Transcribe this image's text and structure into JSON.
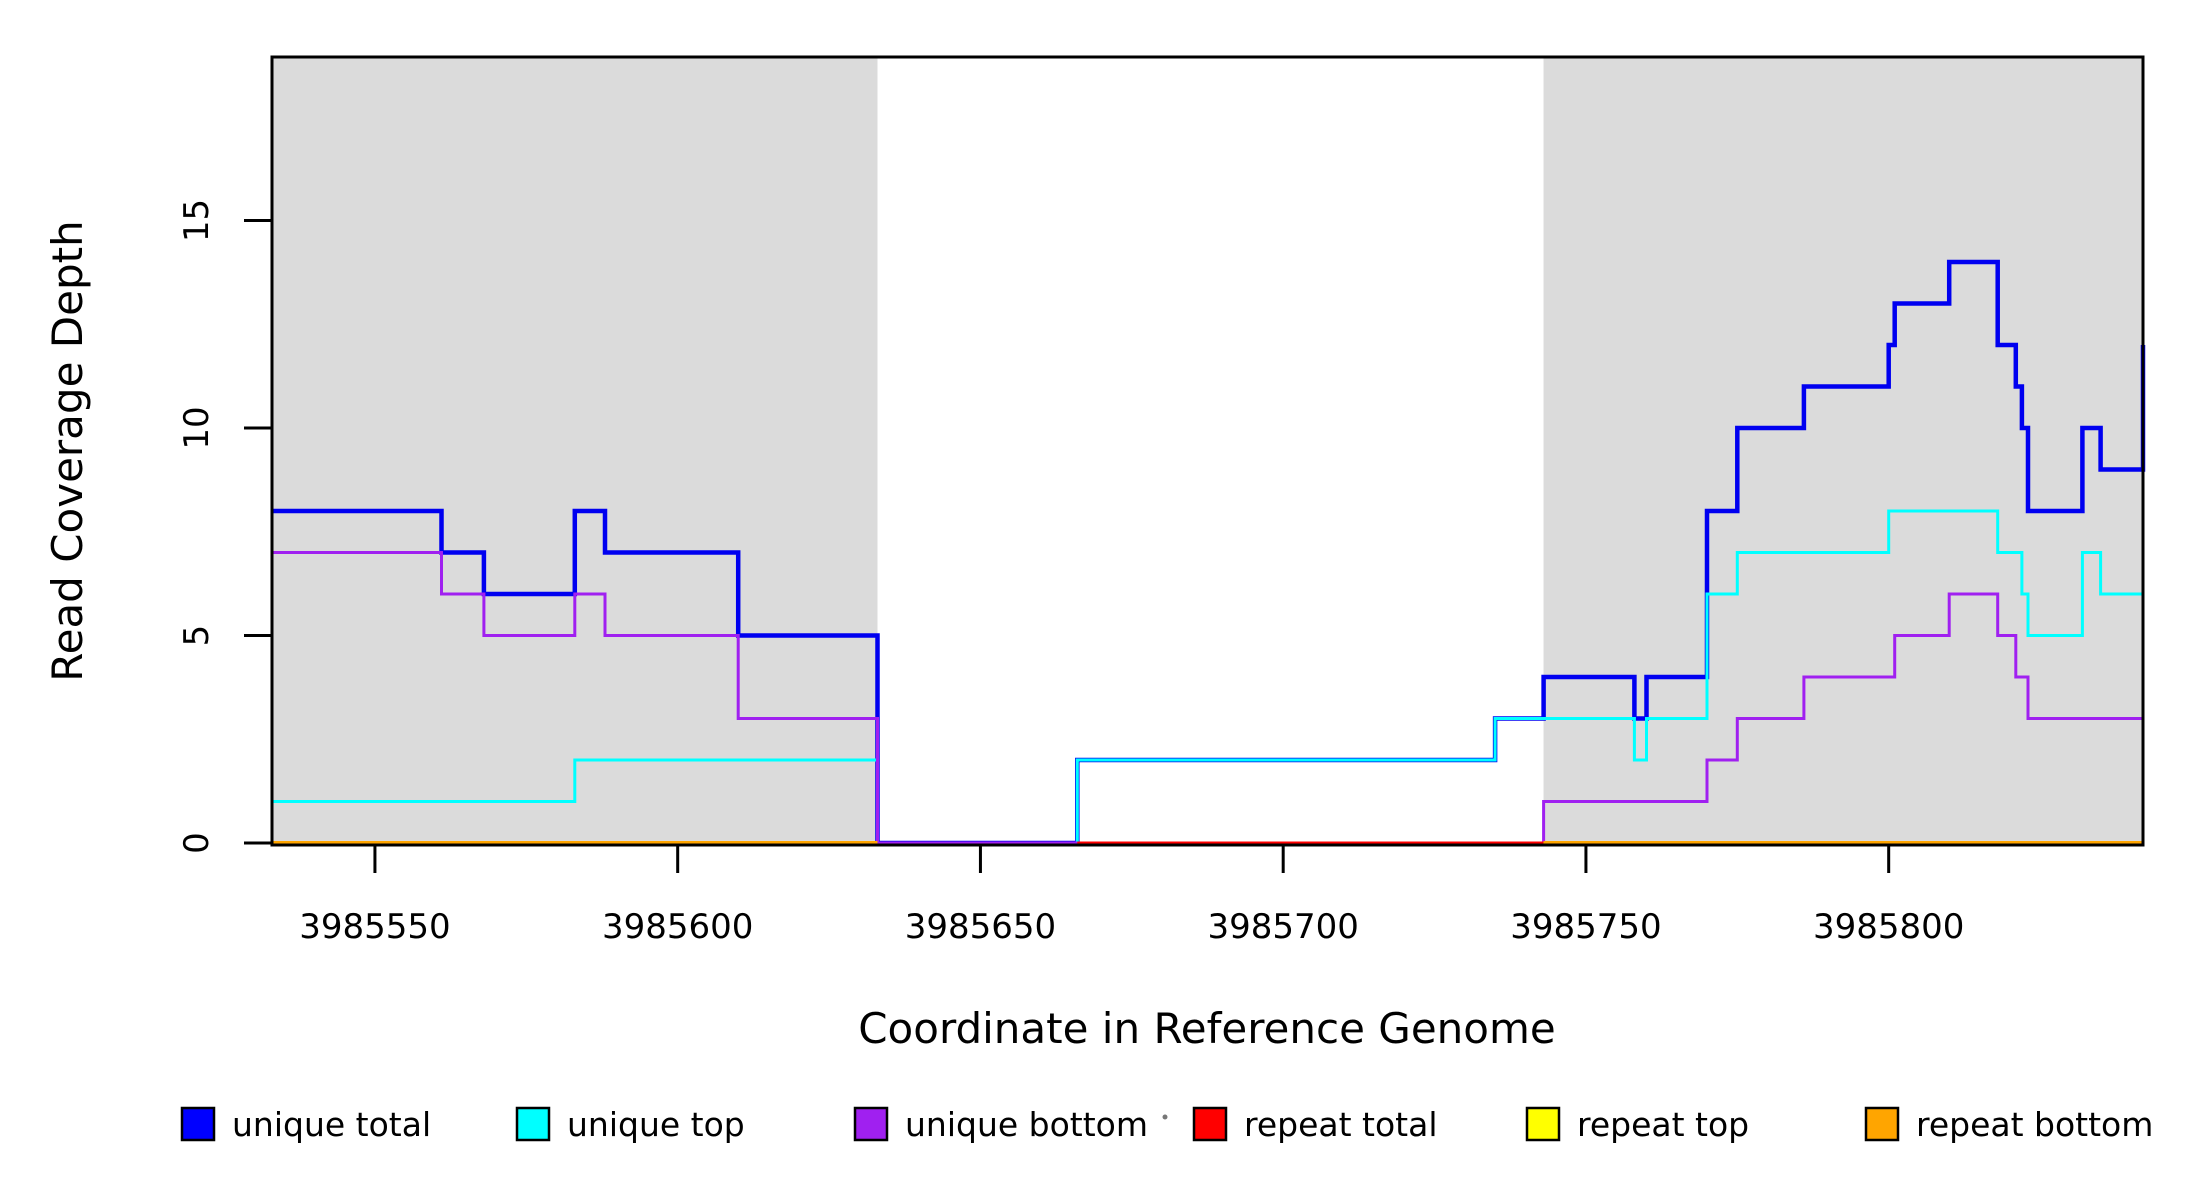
{
  "chart_data": {
    "type": "line",
    "step_style": "step-post",
    "title": "",
    "xlabel": "Coordinate in Reference Genome",
    "ylabel": "Read Coverage Depth",
    "xlim": [
      3985533,
      3985842
    ],
    "ylim": [
      0,
      18.94
    ],
    "x_ticks": [
      3985550,
      3985600,
      3985650,
      3985700,
      3985750,
      3985800
    ],
    "y_ticks": [
      0,
      5,
      10,
      15
    ],
    "grid": false,
    "legend_position": "bottom",
    "shaded_regions": [
      {
        "x0": 3985533,
        "x1": 3985633,
        "color": "#dbdbdb"
      },
      {
        "x0": 3985743,
        "x1": 3985842,
        "color": "#dbdbdb"
      }
    ],
    "series": [
      {
        "name": "unique total",
        "color": "#0000f0",
        "width": 4.5,
        "segments": [
          [
            [
              3985533,
              8
            ],
            [
              3985561,
              7
            ],
            [
              3985568,
              6
            ],
            [
              3985583,
              8
            ],
            [
              3985588,
              7
            ],
            [
              3985610,
              5
            ],
            [
              3985633,
              0
            ],
            [
              3985666,
              2
            ],
            [
              3985735,
              3
            ],
            [
              3985743,
              4
            ],
            [
              3985758,
              3
            ],
            [
              3985760,
              4
            ],
            [
              3985770,
              8
            ],
            [
              3985775,
              10
            ],
            [
              3985786,
              11
            ],
            [
              3985800,
              12
            ],
            [
              3985801,
              13
            ],
            [
              3985810,
              14
            ],
            [
              3985818,
              12
            ],
            [
              3985821,
              11
            ],
            [
              3985822,
              10
            ],
            [
              3985823,
              8
            ],
            [
              3985832,
              10
            ],
            [
              3985835,
              9
            ],
            [
              3985842,
              12
            ]
          ]
        ]
      },
      {
        "name": "unique top",
        "color": "#00ffff",
        "width": 3,
        "segments": [
          [
            [
              3985533,
              1
            ],
            [
              3985583,
              2
            ],
            [
              3985633,
              0
            ],
            [
              3985666,
              2
            ],
            [
              3985735,
              3
            ],
            [
              3985758,
              2
            ],
            [
              3985760,
              3
            ],
            [
              3985770,
              6
            ],
            [
              3985775,
              7
            ],
            [
              3985800,
              8
            ],
            [
              3985818,
              7
            ],
            [
              3985822,
              6
            ],
            [
              3985823,
              5
            ],
            [
              3985832,
              7
            ],
            [
              3985835,
              6
            ],
            [
              3985842,
              8
            ]
          ]
        ]
      },
      {
        "name": "unique bottom",
        "color": "#a020f0",
        "width": 3,
        "segments": [
          [
            [
              3985533,
              7
            ],
            [
              3985561,
              6
            ],
            [
              3985568,
              5
            ],
            [
              3985583,
              6
            ],
            [
              3985588,
              5
            ],
            [
              3985610,
              3
            ],
            [
              3985633,
              0
            ],
            [
              3985743,
              1
            ],
            [
              3985770,
              2
            ],
            [
              3985775,
              3
            ],
            [
              3985786,
              4
            ],
            [
              3985801,
              5
            ],
            [
              3985810,
              6
            ],
            [
              3985818,
              5
            ],
            [
              3985821,
              4
            ],
            [
              3985823,
              3
            ],
            [
              3985842,
              4
            ]
          ]
        ]
      },
      {
        "name": "repeat total",
        "color": "#ff0000",
        "width": 3,
        "segments": [
          [
            [
              3985666,
              0
            ],
            [
              3985743,
              0
            ]
          ]
        ]
      },
      {
        "name": "repeat top",
        "color": "#ffff00",
        "width": 3,
        "segments": [
          [
            [
              3985533,
              0
            ],
            [
              3985633,
              0
            ]
          ],
          [
            [
              3985743,
              0
            ],
            [
              3985842,
              0
            ]
          ]
        ]
      },
      {
        "name": "repeat bottom",
        "color": "#ffa500",
        "width": 4,
        "segments": [
          [
            [
              3985533,
              0
            ],
            [
              3985633,
              0
            ]
          ],
          [
            [
              3985743,
              0
            ],
            [
              3985842,
              0
            ]
          ]
        ]
      }
    ],
    "legend": [
      {
        "label": "unique total",
        "color": "#0000ff"
      },
      {
        "label": "unique top",
        "color": "#00ffff"
      },
      {
        "label": "unique bottom",
        "color": "#a020f0"
      },
      {
        "label": "repeat total",
        "color": "#ff0000"
      },
      {
        "label": "repeat top",
        "color": "#ffff00"
      },
      {
        "label": "repeat bottom",
        "color": "#ffa500"
      }
    ]
  }
}
